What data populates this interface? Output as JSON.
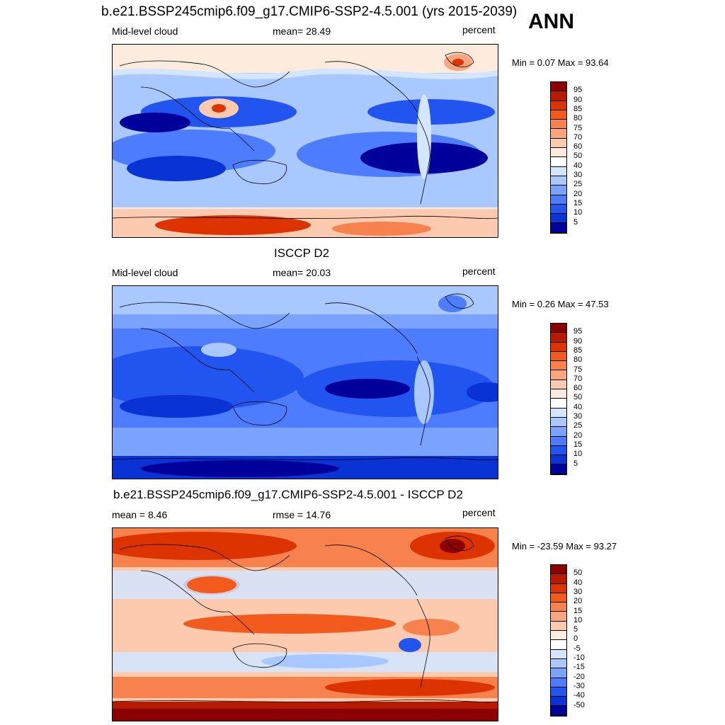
{
  "top_title": "b.e21.BSSP245cmip6.f09_g17.CMIP6-SSP2-4.5.001 (yrs 2015-2039)",
  "season": "ANN",
  "panels": [
    {
      "title": "",
      "left_label": "Mid-level cloud",
      "center_label": "mean=  28.49",
      "units": "percent",
      "minmax": "Min =   0.07 Max =  93.64",
      "palette": "absolute"
    },
    {
      "title": "ISCCP D2",
      "left_label": "Mid-level cloud",
      "center_label": "mean=  20.03",
      "units": "percent",
      "minmax": "Min =   0.26 Max =  47.53",
      "palette": "absolute"
    },
    {
      "title": "b.e21.BSSP245cmip6.f09_g17.CMIP6-SSP2-4.5.001 - ISCCP D2",
      "left_label": "mean =   8.46",
      "center_label": "rmse =  14.76",
      "units": "percent",
      "minmax": "Min = -23.59 Max =  93.27",
      "palette": "difference"
    }
  ],
  "colorbars": {
    "absolute": {
      "labels": [
        "95",
        "90",
        "85",
        "80",
        "75",
        "70",
        "60",
        "50",
        "40",
        "30",
        "25",
        "20",
        "15",
        "10",
        "5"
      ],
      "colors": [
        "#8b0000",
        "#b81a00",
        "#dc3300",
        "#f25a1e",
        "#f7824d",
        "#f9a57d",
        "#fccbaf",
        "#fdebdd",
        "#ffffff",
        "#d4e5ff",
        "#a9c8ff",
        "#7aa3ff",
        "#4d7cff",
        "#2255f0",
        "#0a33d6",
        "#00009a"
      ]
    },
    "difference": {
      "labels": [
        "50",
        "40",
        "30",
        "20",
        "15",
        "10",
        "5",
        "0",
        "-5",
        "-10",
        "-15",
        "-20",
        "-30",
        "-40",
        "-50"
      ],
      "colors": [
        "#8b0000",
        "#b81a00",
        "#dc3300",
        "#f25a1e",
        "#f7824d",
        "#f9a57d",
        "#fccbaf",
        "#fdebdd",
        "#ffffff",
        "#d4e5ff",
        "#a9c8ff",
        "#7aa3ff",
        "#4d7cff",
        "#2255f0",
        "#0a33d6",
        "#00009a"
      ]
    }
  },
  "chart_data": [
    {
      "type": "heatmap",
      "title": "b.e21.BSSP245cmip6.f09_g17.CMIP6-SSP2-4.5.001 (yrs 2015-2039)",
      "variable": "Mid-level cloud",
      "units": "percent",
      "mean": 28.49,
      "min": 0.07,
      "max": 93.64,
      "levels": [
        5,
        10,
        15,
        20,
        25,
        30,
        40,
        50,
        60,
        70,
        75,
        80,
        85,
        90,
        95
      ]
    },
    {
      "type": "heatmap",
      "title": "ISCCP D2",
      "variable": "Mid-level cloud",
      "units": "percent",
      "mean": 20.03,
      "min": 0.26,
      "max": 47.53,
      "levels": [
        5,
        10,
        15,
        20,
        25,
        30,
        40,
        50,
        60,
        70,
        75,
        80,
        85,
        90,
        95
      ]
    },
    {
      "type": "heatmap",
      "title": "b.e21.BSSP245cmip6.f09_g17.CMIP6-SSP2-4.5.001 - ISCCP D2",
      "units": "percent",
      "mean": 8.46,
      "rmse": 14.76,
      "min": -23.59,
      "max": 93.27,
      "levels": [
        -50,
        -40,
        -30,
        -20,
        -15,
        -10,
        -5,
        0,
        5,
        10,
        15,
        20,
        30,
        40,
        50
      ]
    }
  ]
}
